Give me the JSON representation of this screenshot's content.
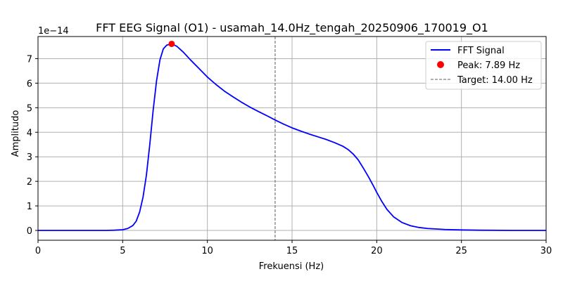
{
  "chart_data": {
    "type": "line",
    "title": "FFT EEG Signal (O1) - usamah_14.0Hz_tengah_20250906_170019_O1",
    "xlabel": "Frekuensi (Hz)",
    "ylabel": "Amplitudo",
    "y_offset_label": "1e−14",
    "xlim": [
      0,
      30
    ],
    "ylim": [
      -0.4,
      7.9
    ],
    "x_ticks": [
      0,
      5,
      10,
      15,
      20,
      25,
      30
    ],
    "y_ticks": [
      0,
      1,
      2,
      3,
      4,
      5,
      6,
      7
    ],
    "grid": true,
    "legend_position": "top-right",
    "series": [
      {
        "name": "FFT Signal",
        "color": "#0000ff",
        "x": [
          0,
          1,
          2,
          3,
          4,
          4.5,
          5,
          5.3,
          5.6,
          5.8,
          6.0,
          6.2,
          6.4,
          6.6,
          6.8,
          7.0,
          7.2,
          7.4,
          7.6,
          7.89,
          8.2,
          8.6,
          9.0,
          9.5,
          10,
          10.5,
          11,
          11.5,
          12,
          12.5,
          13,
          13.5,
          14,
          14.5,
          15,
          15.5,
          16,
          16.5,
          17,
          17.5,
          18,
          18.3,
          18.6,
          18.9,
          19.2,
          19.5,
          19.8,
          20,
          20.3,
          20.6,
          21,
          21.5,
          22,
          22.5,
          23,
          24,
          25,
          26,
          28,
          30
        ],
        "y": [
          0,
          0,
          0,
          0,
          0,
          0.01,
          0.03,
          0.08,
          0.2,
          0.38,
          0.75,
          1.35,
          2.25,
          3.5,
          4.9,
          6.1,
          6.95,
          7.4,
          7.55,
          7.6,
          7.5,
          7.25,
          6.95,
          6.6,
          6.25,
          5.95,
          5.68,
          5.45,
          5.23,
          5.03,
          4.85,
          4.68,
          4.5,
          4.33,
          4.18,
          4.05,
          3.93,
          3.82,
          3.71,
          3.58,
          3.43,
          3.3,
          3.12,
          2.88,
          2.55,
          2.2,
          1.82,
          1.55,
          1.18,
          0.86,
          0.55,
          0.32,
          0.19,
          0.12,
          0.08,
          0.04,
          0.02,
          0.01,
          0,
          0
        ]
      }
    ],
    "peak": {
      "label": "Peak: 7.89 Hz",
      "x": 7.89,
      "y": 7.6,
      "color": "#ff0000"
    },
    "target": {
      "label": "Target: 14.00 Hz",
      "x": 14.0,
      "color": "#808080"
    }
  }
}
